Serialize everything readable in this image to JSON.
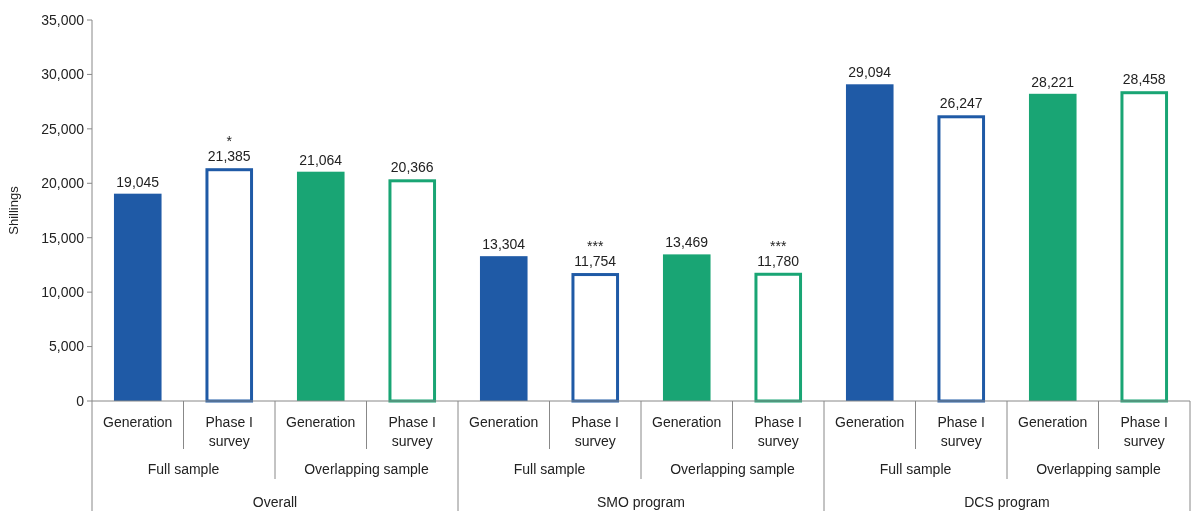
{
  "chart_data": {
    "type": "bar",
    "ylabel": "Shillings",
    "categories": [
      "Generation",
      "Phase I survey",
      "Generation",
      "Phase I survey",
      "Generation",
      "Phase I survey",
      "Generation",
      "Phase I survey",
      "Generation",
      "Phase I survey",
      "Generation",
      "Phase I survey"
    ],
    "series": [
      {
        "colors": [
          "#1f5aa6",
          null,
          "#19a574",
          null,
          "#1f5aa6",
          null,
          "#19a574",
          null,
          "#1f5aa6",
          null,
          "#19a574",
          null
        ],
        "values": [
          19045,
          null,
          21064,
          null,
          13304,
          null,
          13469,
          null,
          29094,
          null,
          28221,
          null
        ],
        "value_labels": [
          "19,045",
          null,
          "21,064",
          null,
          "13,304",
          null,
          "13,469",
          null,
          "29,094",
          null,
          "28,221",
          null
        ]
      },
      {
        "colors": [
          null,
          "#1f5aa6",
          null,
          "#19a574",
          null,
          "#1f5aa6",
          null,
          "#19a574",
          null,
          "#1f5aa6",
          null,
          "#19a574"
        ],
        "values": [
          null,
          21385,
          null,
          20366,
          null,
          11754,
          null,
          11780,
          null,
          26247,
          null,
          28458
        ],
        "value_labels": [
          null,
          "21,385",
          null,
          "20,366",
          null,
          "11,754",
          null,
          "11,780",
          null,
          "26,247",
          null,
          "28,458"
        ]
      }
    ],
    "ylim": [
      0,
      35000
    ],
    "yticks": [
      0,
      {
        "value": 5000,
        "label": "5,000"
      },
      {
        "value": 10000,
        "label": "10,000"
      },
      {
        "value": 15000,
        "label": "15,000"
      },
      {
        "value": 20000,
        "label": "20,000"
      },
      {
        "value": 25000,
        "label": "25,000"
      },
      {
        "value": 30000,
        "label": "30,000"
      },
      {
        "value": 35000,
        "label": "35,000"
      }
    ],
    "grid": false,
    "annotations": [
      "Full sample",
      "Overlapping sample",
      "Full sample",
      "Overlapping sample",
      "Full sample",
      "Overlapping sample",
      "Overall",
      "SMO program",
      "DCS program",
      {
        "text": "*",
        "y": 21385
      },
      {
        "text": "***",
        "y": 11754
      },
      {
        "text": "***",
        "y": 11780
      }
    ]
  }
}
